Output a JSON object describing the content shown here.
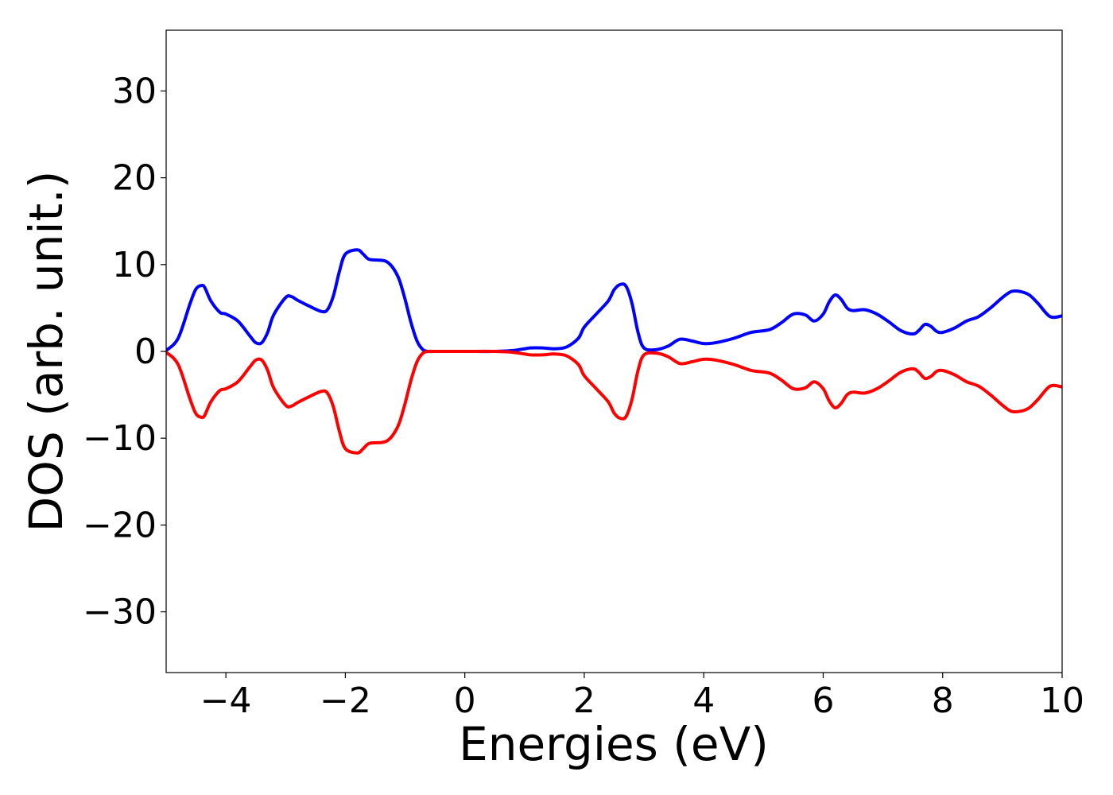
{
  "chart_data": {
    "type": "line",
    "title": "",
    "xlabel": "Energies (eV)",
    "ylabel": "DOS (arb. unit.)",
    "xlim": [
      -5,
      10
    ],
    "ylim": [
      -37,
      37
    ],
    "x_ticks": [
      -4,
      -2,
      0,
      2,
      4,
      6,
      8,
      10
    ],
    "x_tick_labels": [
      "−4",
      "−2",
      "0",
      "2",
      "4",
      "6",
      "8",
      "10"
    ],
    "y_ticks": [
      -30,
      -20,
      -10,
      0,
      10,
      20,
      30
    ],
    "y_tick_labels": [
      "−30",
      "−20",
      "−10",
      "0",
      "10",
      "20",
      "30"
    ],
    "grid": false,
    "legend": "none",
    "series": [
      {
        "color": "#0000ff",
        "x": [
          -5.0,
          -4.8,
          -4.6,
          -4.5,
          -4.4,
          -4.35,
          -4.25,
          -4.1,
          -4.0,
          -3.8,
          -3.6,
          -3.5,
          -3.4,
          -3.3,
          -3.2,
          -3.0,
          -2.9,
          -2.8,
          -2.6,
          -2.4,
          -2.3,
          -2.2,
          -2.1,
          -2.0,
          -1.8,
          -1.7,
          -1.6,
          -1.4,
          -1.3,
          -1.2,
          -1.1,
          -1.0,
          -0.9,
          -0.8,
          -0.7,
          -0.6,
          -0.5,
          0.0,
          0.5,
          0.8,
          1.0,
          1.1,
          1.3,
          1.5,
          1.7,
          1.9,
          2.0,
          2.2,
          2.4,
          2.5,
          2.6,
          2.7,
          2.8,
          2.9,
          3.0,
          3.2,
          3.4,
          3.6,
          3.8,
          4.0,
          4.2,
          4.5,
          4.8,
          5.1,
          5.3,
          5.5,
          5.7,
          5.85,
          6.0,
          6.1,
          6.2,
          6.3,
          6.4,
          6.5,
          6.7,
          6.9,
          7.1,
          7.3,
          7.5,
          7.6,
          7.7,
          7.8,
          7.9,
          8.0,
          8.2,
          8.4,
          8.6,
          8.8,
          9.0,
          9.15,
          9.3,
          9.45,
          9.6,
          9.8,
          10.0
        ],
        "values": [
          0.1,
          1.5,
          5.5,
          7.2,
          7.6,
          7.3,
          5.8,
          4.5,
          4.3,
          3.5,
          1.8,
          1.0,
          1.0,
          2.2,
          4.2,
          6.2,
          6.3,
          5.9,
          5.2,
          4.6,
          4.8,
          6.4,
          9.2,
          11.2,
          11.7,
          11.2,
          10.6,
          10.5,
          10.3,
          9.6,
          8.3,
          6.0,
          3.3,
          1.2,
          0.2,
          0.0,
          0.0,
          0.0,
          0.0,
          0.1,
          0.3,
          0.4,
          0.4,
          0.3,
          0.5,
          1.5,
          2.8,
          4.3,
          5.8,
          7.1,
          7.7,
          7.5,
          5.5,
          2.2,
          0.4,
          0.2,
          0.6,
          1.4,
          1.2,
          0.9,
          1.0,
          1.5,
          2.2,
          2.5,
          3.3,
          4.3,
          4.2,
          3.5,
          4.3,
          5.7,
          6.5,
          6.0,
          5.0,
          4.7,
          4.8,
          4.3,
          3.4,
          2.4,
          2.0,
          2.4,
          3.1,
          2.9,
          2.3,
          2.2,
          2.7,
          3.5,
          4.0,
          5.0,
          6.2,
          6.9,
          6.9,
          6.5,
          5.5,
          4.0,
          4.1
        ]
      },
      {
        "color": "#ff0000",
        "x": [
          -5.0,
          -4.8,
          -4.6,
          -4.5,
          -4.4,
          -4.35,
          -4.25,
          -4.1,
          -4.0,
          -3.8,
          -3.6,
          -3.5,
          -3.4,
          -3.3,
          -3.2,
          -3.0,
          -2.9,
          -2.8,
          -2.6,
          -2.4,
          -2.3,
          -2.2,
          -2.1,
          -2.0,
          -1.8,
          -1.7,
          -1.6,
          -1.4,
          -1.3,
          -1.2,
          -1.1,
          -1.0,
          -0.9,
          -0.8,
          -0.7,
          -0.6,
          -0.5,
          0.0,
          0.5,
          0.8,
          1.0,
          1.1,
          1.3,
          1.5,
          1.7,
          1.9,
          2.0,
          2.2,
          2.4,
          2.5,
          2.6,
          2.7,
          2.8,
          2.9,
          3.0,
          3.2,
          3.4,
          3.6,
          3.8,
          4.0,
          4.2,
          4.5,
          4.8,
          5.1,
          5.3,
          5.5,
          5.7,
          5.85,
          6.0,
          6.1,
          6.2,
          6.3,
          6.4,
          6.5,
          6.7,
          6.9,
          7.1,
          7.3,
          7.5,
          7.6,
          7.7,
          7.8,
          7.9,
          8.0,
          8.2,
          8.4,
          8.6,
          8.8,
          9.0,
          9.15,
          9.3,
          9.45,
          9.6,
          9.8,
          10.0
        ],
        "values": [
          -0.1,
          -1.5,
          -5.5,
          -7.2,
          -7.6,
          -7.3,
          -5.8,
          -4.5,
          -4.3,
          -3.5,
          -1.8,
          -1.0,
          -1.0,
          -2.2,
          -4.2,
          -6.2,
          -6.3,
          -5.9,
          -5.2,
          -4.6,
          -4.8,
          -6.4,
          -9.2,
          -11.2,
          -11.7,
          -11.2,
          -10.6,
          -10.5,
          -10.3,
          -9.6,
          -8.3,
          -6.0,
          -3.3,
          -1.2,
          -0.2,
          -0.0,
          -0.0,
          -0.0,
          -0.0,
          -0.1,
          -0.3,
          -0.4,
          -0.4,
          -0.3,
          -0.5,
          -1.5,
          -2.8,
          -4.3,
          -5.8,
          -7.1,
          -7.7,
          -7.5,
          -5.5,
          -2.2,
          -0.4,
          -0.2,
          -0.6,
          -1.4,
          -1.2,
          -0.9,
          -1.0,
          -1.5,
          -2.2,
          -2.5,
          -3.3,
          -4.3,
          -4.2,
          -3.5,
          -4.3,
          -5.7,
          -6.5,
          -6.0,
          -5.0,
          -4.7,
          -4.8,
          -4.3,
          -3.4,
          -2.4,
          -2.0,
          -2.4,
          -3.1,
          -2.9,
          -2.3,
          -2.2,
          -2.7,
          -3.5,
          -4.0,
          -5.0,
          -6.2,
          -6.9,
          -6.9,
          -6.5,
          -5.5,
          -4.0,
          -4.1
        ]
      }
    ]
  }
}
